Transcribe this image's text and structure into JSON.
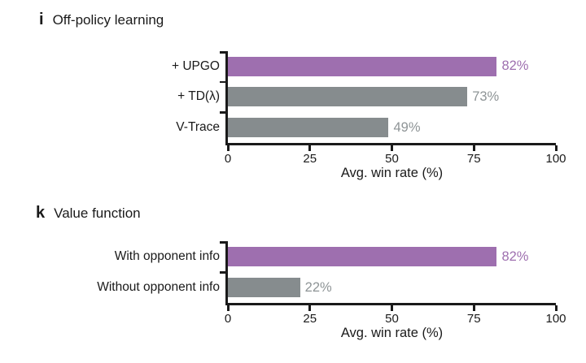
{
  "figure": {
    "background": "#ffffff",
    "text_color": "#1a1a1a",
    "accent_purple": "#9E6FAF",
    "bar_gray": "#868C8E"
  },
  "chart_data": [
    {
      "type": "bar",
      "orientation": "horizontal",
      "panel_letter": "i",
      "title": "Off-policy learning",
      "categories": [
        "+ UPGO",
        "+ TD(λ)",
        "V-Trace"
      ],
      "values": [
        82,
        73,
        49
      ],
      "value_labels": [
        "82%",
        "73%",
        "49%"
      ],
      "bar_colors": [
        "#9E6FAF",
        "#868C8E",
        "#868C8E"
      ],
      "value_label_colors": [
        "#9E6FAF",
        "#8E9496",
        "#8E9496"
      ],
      "xlabel": "Avg. win rate (%)",
      "xlim": [
        0,
        100
      ],
      "xticks": [
        0,
        25,
        50,
        75,
        100
      ],
      "grid": false
    },
    {
      "type": "bar",
      "orientation": "horizontal",
      "panel_letter": "k",
      "title": "Value function",
      "categories": [
        "With opponent info",
        "Without opponent info"
      ],
      "values": [
        82,
        22
      ],
      "value_labels": [
        "82%",
        "22%"
      ],
      "bar_colors": [
        "#9E6FAF",
        "#868C8E"
      ],
      "value_label_colors": [
        "#9E6FAF",
        "#8E9496"
      ],
      "xlabel": "Avg. win rate (%)",
      "xlim": [
        0,
        100
      ],
      "xticks": [
        0,
        25,
        50,
        75,
        100
      ],
      "grid": false
    }
  ]
}
